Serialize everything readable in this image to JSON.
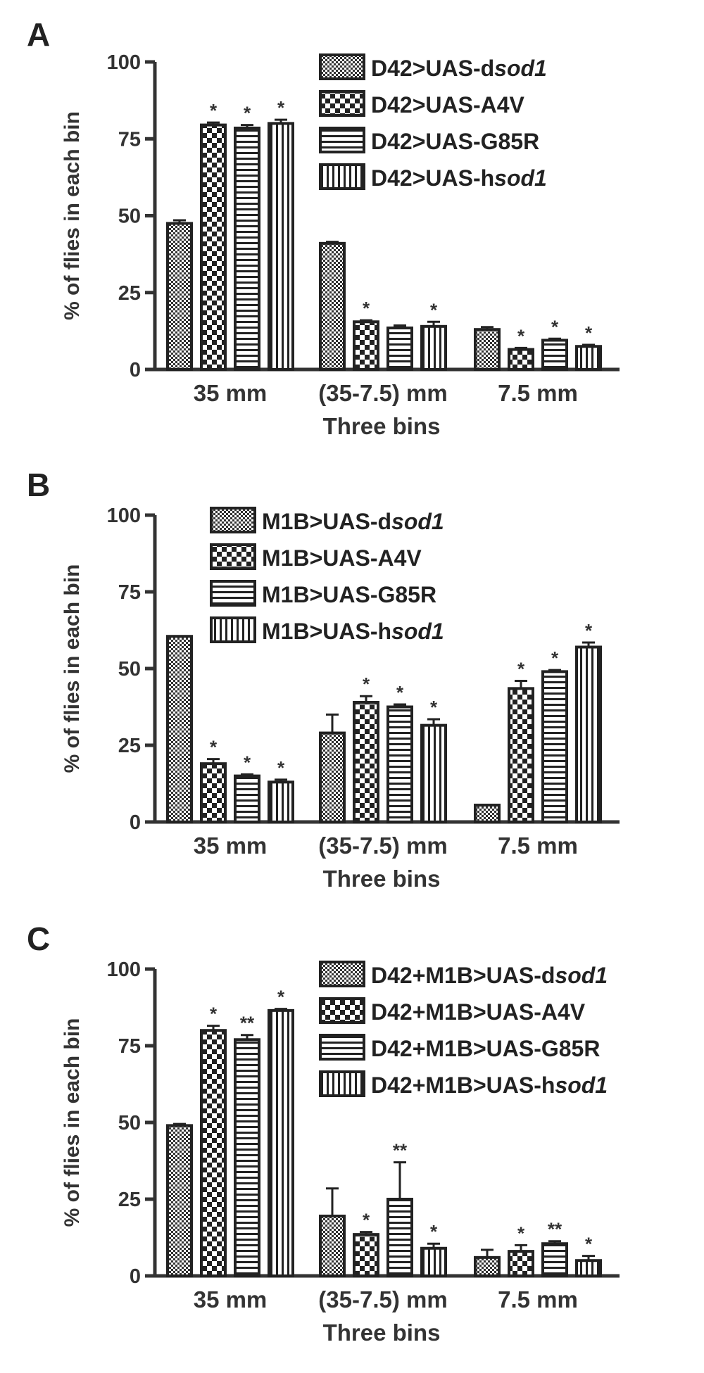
{
  "chart_data": [
    {
      "panel": "A",
      "type": "bar",
      "xlabel": "Three bins",
      "ylabel": "% of flies in each bin",
      "ylim": [
        0,
        100
      ],
      "yticks": [
        "0",
        "25",
        "50",
        "75",
        "100"
      ],
      "categories": [
        "35 mm",
        "(35-7.5) mm",
        "7.5 mm"
      ],
      "legend_placement": "top-right",
      "series": [
        {
          "name": "D42>UAS-dsod1",
          "label_parts": [
            "D42>UAS-d",
            "sod1"
          ],
          "pattern": "fine-check",
          "values": [
            47.5,
            41,
            13
          ],
          "errors": [
            1,
            0.5,
            0.8
          ],
          "annotations": [
            "",
            "",
            ""
          ]
        },
        {
          "name": "D42>UAS-A4V",
          "label_parts": [
            "D42>UAS-A4V",
            ""
          ],
          "pattern": "checker",
          "values": [
            79.5,
            15.5,
            6.5
          ],
          "errors": [
            0.8,
            0.5,
            0.5
          ],
          "annotations": [
            "*",
            "*",
            "*"
          ]
        },
        {
          "name": "D42>UAS-G85R",
          "label_parts": [
            "D42>UAS-G85R",
            ""
          ],
          "pattern": "horizontal-lines",
          "values": [
            78.5,
            13.5,
            9.5
          ],
          "errors": [
            1,
            0.8,
            0.5
          ],
          "annotations": [
            "*",
            "",
            "*"
          ]
        },
        {
          "name": "D42>UAS-hsod1",
          "label_parts": [
            "D42>UAS-h",
            "sod1"
          ],
          "pattern": "vertical-lines",
          "values": [
            80,
            14,
            7.5
          ],
          "errors": [
            1.2,
            1.5,
            0.5
          ],
          "annotations": [
            "*",
            "*",
            "*"
          ]
        }
      ]
    },
    {
      "panel": "B",
      "type": "bar",
      "xlabel": "Three bins",
      "ylabel": "% of flies in each bin",
      "ylim": [
        0,
        100
      ],
      "yticks": [
        "0",
        "25",
        "50",
        "75",
        "100"
      ],
      "categories": [
        "35 mm",
        "(35-7.5) mm",
        "7.5 mm"
      ],
      "legend_placement": "top-center",
      "series": [
        {
          "name": "M1B>UAS-dsod1",
          "label_parts": [
            "M1B>UAS-d",
            "sod1"
          ],
          "pattern": "fine-check",
          "values": [
            60.5,
            29,
            5.5
          ],
          "errors": [
            0,
            6,
            0
          ],
          "annotations": [
            "",
            "",
            ""
          ]
        },
        {
          "name": "M1B>UAS-A4V",
          "label_parts": [
            "M1B>UAS-A4V",
            ""
          ],
          "pattern": "checker",
          "values": [
            19,
            39,
            43.5
          ],
          "errors": [
            1.5,
            2,
            2.5
          ],
          "annotations": [
            "*",
            "*",
            "*"
          ]
        },
        {
          "name": "M1B>UAS-G85R",
          "label_parts": [
            "M1B>UAS-G85R",
            ""
          ],
          "pattern": "horizontal-lines",
          "values": [
            15,
            37.5,
            49
          ],
          "errors": [
            0.5,
            0.8,
            0.5
          ],
          "annotations": [
            "*",
            "*",
            "*"
          ]
        },
        {
          "name": "M1B>UAS-hsod1",
          "label_parts": [
            "M1B>UAS-h",
            "sod1"
          ],
          "pattern": "vertical-lines",
          "values": [
            13,
            31.5,
            57
          ],
          "errors": [
            0.8,
            2,
            1.5
          ],
          "annotations": [
            "*",
            "*",
            "*"
          ]
        }
      ]
    },
    {
      "panel": "C",
      "type": "bar",
      "xlabel": "Three bins",
      "ylabel": "% of flies in each bin",
      "ylim": [
        0,
        100
      ],
      "yticks": [
        "0",
        "25",
        "50",
        "75",
        "100"
      ],
      "categories": [
        "35 mm",
        "(35-7.5) mm",
        "7.5 mm"
      ],
      "legend_placement": "top-right",
      "series": [
        {
          "name": "D42+M1B>UAS-dsod1",
          "label_parts": [
            "D42+M1B>UAS-d",
            "sod1"
          ],
          "pattern": "fine-check",
          "values": [
            49,
            19.5,
            6
          ],
          "errors": [
            0.5,
            9,
            2.5
          ],
          "annotations": [
            "",
            "",
            ""
          ]
        },
        {
          "name": "D42+M1B>UAS-A4V",
          "label_parts": [
            "D42+M1B>UAS-A4V",
            ""
          ],
          "pattern": "checker",
          "values": [
            80,
            13.5,
            8
          ],
          "errors": [
            1.5,
            0.8,
            2
          ],
          "annotations": [
            "*",
            "*",
            "*"
          ]
        },
        {
          "name": "D42+M1B>UAS-G85R",
          "label_parts": [
            "D42+M1B>UAS-G85R",
            ""
          ],
          "pattern": "horizontal-lines",
          "values": [
            77,
            25,
            10.5
          ],
          "errors": [
            1.5,
            12,
            0.8
          ],
          "annotations": [
            "**",
            "**",
            "**"
          ]
        },
        {
          "name": "D42+M1B>UAS-hsod1",
          "label_parts": [
            "D42+M1B>UAS-h",
            "sod1"
          ],
          "pattern": "vertical-lines",
          "values": [
            86.5,
            9,
            5
          ],
          "errors": [
            0.5,
            1.5,
            1.5
          ],
          "annotations": [
            "*",
            "*",
            "*"
          ]
        }
      ]
    }
  ]
}
